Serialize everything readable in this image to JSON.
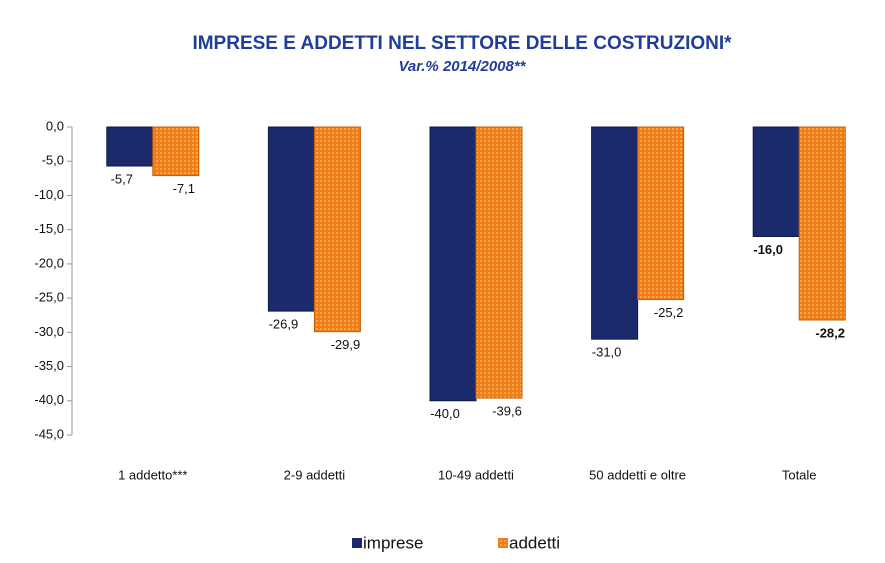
{
  "chart_data": {
    "type": "bar",
    "title": "IMPRESE  E ADDETTI  NEL SETTORE DELLE COSTRUZIONI*",
    "subtitle": "Var.% 2014/2008**",
    "categories": [
      "1 addetto***",
      "2-9 addetti",
      "10-49 addetti",
      "50  addetti e oltre",
      "Totale"
    ],
    "series": [
      {
        "name": "imprese",
        "color": "#1b2a6b",
        "values": [
          -5.7,
          -26.9,
          -40.0,
          -31.0,
          -16.0
        ],
        "value_labels": [
          "-5,7",
          "-26,9",
          "-40,0",
          "-31,0",
          "-16,0"
        ]
      },
      {
        "name": "addetti",
        "color": "#f07d1a",
        "values": [
          -7.1,
          -29.9,
          -39.6,
          -25.2,
          -28.2
        ],
        "value_labels": [
          "-7,1",
          "-29,9",
          "-39,6",
          "-25,2",
          "-28,2"
        ]
      }
    ],
    "ylim": [
      -45,
      0
    ],
    "yticks": [
      {
        "value": 0,
        "label": "0,0"
      },
      {
        "value": -5,
        "label": "-5,0"
      },
      {
        "value": -10,
        "label": "-10,0"
      },
      {
        "value": -15,
        "label": "-15,0"
      },
      {
        "value": -20,
        "label": "-20,0"
      },
      {
        "value": -25,
        "label": "-25,0"
      },
      {
        "value": -30,
        "label": "-30,0"
      },
      {
        "value": -35,
        "label": "-35,0"
      },
      {
        "value": -40,
        "label": "-40,0"
      },
      {
        "value": -45,
        "label": "-45,0"
      }
    ],
    "legend": "bottom"
  }
}
